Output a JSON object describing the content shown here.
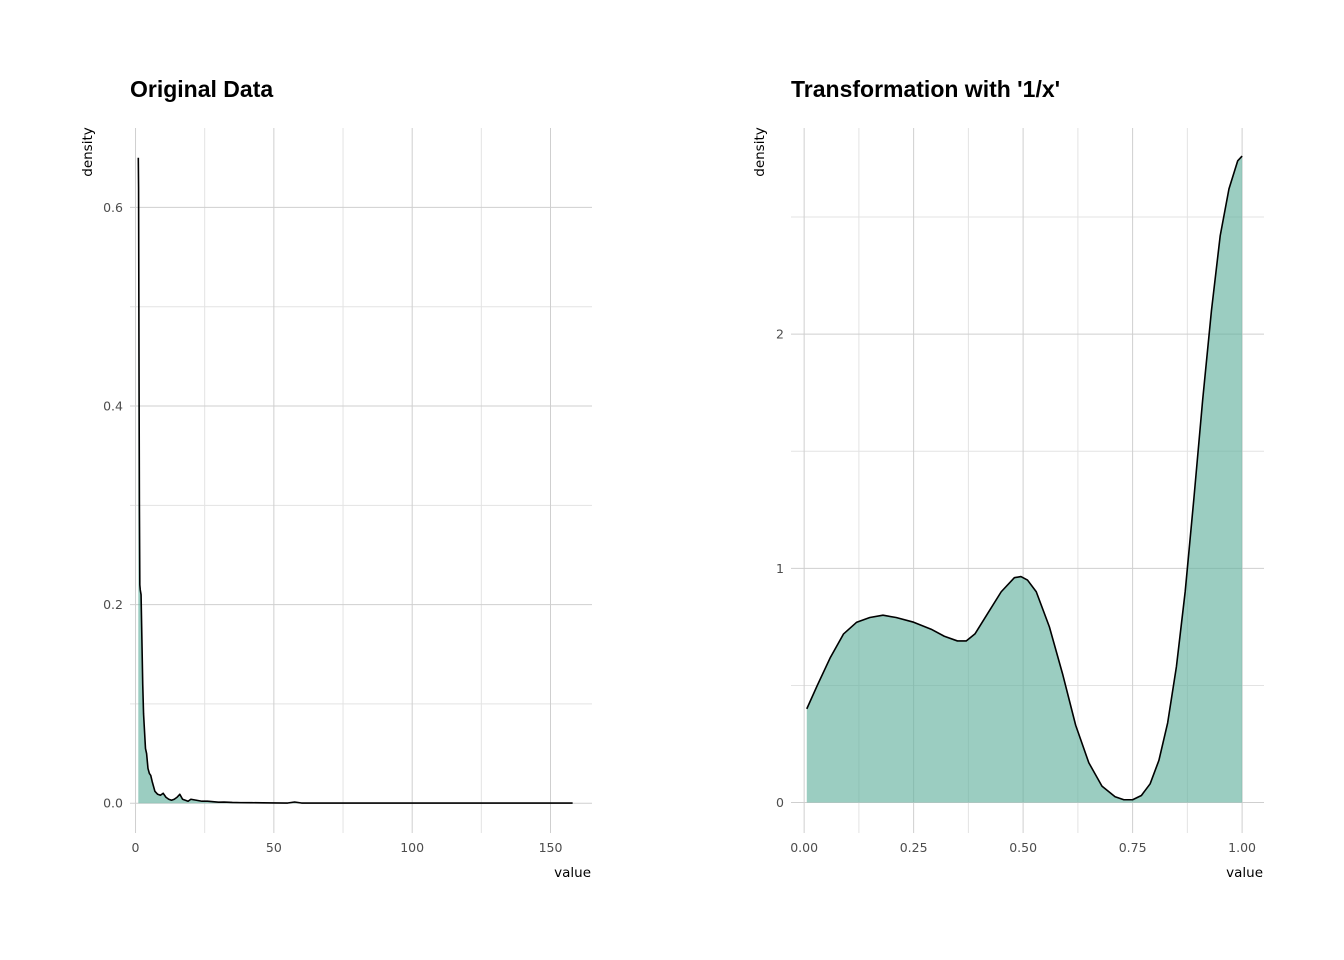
{
  "chart_data": [
    {
      "type": "area",
      "title": "Original Data",
      "xlabel": "value",
      "ylabel": "density",
      "xlim": [
        -2,
        165
      ],
      "ylim": [
        -0.03,
        0.68
      ],
      "x_ticks": [
        0,
        50,
        100,
        150
      ],
      "y_ticks": [
        0.0,
        0.2,
        0.4,
        0.6
      ],
      "x_tick_labels": [
        "0",
        "50",
        "100",
        "150"
      ],
      "y_tick_labels": [
        "0.0",
        "0.2",
        "0.4",
        "0.6"
      ],
      "grid": true,
      "fill_color": "#66b2a0",
      "fill_opacity": 0.65,
      "line_color": "#000000",
      "series": [
        {
          "x": [
            1.0,
            1.1,
            1.25,
            1.4,
            1.55,
            1.7,
            2.0,
            2.3,
            2.6,
            2.9,
            3.2,
            3.6,
            4.0,
            4.5,
            5.0,
            5.5,
            6.0,
            7.0,
            8.0,
            9.0,
            10.0,
            11.0,
            12.0,
            13.0,
            14.0,
            15.0,
            16.0,
            17.0,
            18.0,
            19.0,
            20.0,
            22.0,
            24.0,
            26.0,
            28.0,
            30.0,
            32.0,
            35.0,
            38.0,
            42.0,
            46.0,
            50.0,
            55.0,
            57.5,
            60.0,
            70.0,
            80.0,
            100.0,
            120.0,
            140.0,
            158.0
          ],
          "y": [
            0.65,
            0.62,
            0.45,
            0.3,
            0.22,
            0.215,
            0.21,
            0.165,
            0.12,
            0.09,
            0.075,
            0.055,
            0.05,
            0.035,
            0.03,
            0.028,
            0.022,
            0.012,
            0.009,
            0.008,
            0.01,
            0.006,
            0.004,
            0.003,
            0.004,
            0.006,
            0.009,
            0.004,
            0.003,
            0.002,
            0.004,
            0.003,
            0.002,
            0.002,
            0.0015,
            0.001,
            0.0012,
            0.0008,
            0.0006,
            0.0005,
            0.0004,
            0.0003,
            0.0002,
            0.0012,
            0.0002,
            0.0001,
            0.0001,
            0.0001,
            0.0001,
            0.0001,
            0.0001
          ]
        }
      ]
    },
    {
      "type": "area",
      "title": "Transformation with '1/x'",
      "xlabel": "value",
      "ylabel": "density",
      "xlim": [
        -0.03,
        1.05
      ],
      "ylim": [
        -0.13,
        2.88
      ],
      "x_ticks": [
        0.0,
        0.25,
        0.5,
        0.75,
        1.0
      ],
      "y_ticks": [
        0,
        1,
        2
      ],
      "x_tick_labels": [
        "0.00",
        "0.25",
        "0.50",
        "0.75",
        "1.00"
      ],
      "y_tick_labels": [
        "0",
        "1",
        "2"
      ],
      "grid": true,
      "fill_color": "#66b2a0",
      "fill_opacity": 0.65,
      "line_color": "#000000",
      "series": [
        {
          "x": [
            0.006,
            0.03,
            0.06,
            0.09,
            0.12,
            0.15,
            0.18,
            0.21,
            0.25,
            0.29,
            0.32,
            0.35,
            0.37,
            0.39,
            0.42,
            0.45,
            0.48,
            0.495,
            0.51,
            0.53,
            0.56,
            0.59,
            0.62,
            0.65,
            0.68,
            0.71,
            0.73,
            0.75,
            0.77,
            0.79,
            0.81,
            0.83,
            0.85,
            0.87,
            0.89,
            0.91,
            0.93,
            0.95,
            0.97,
            0.99,
            1.0
          ],
          "y": [
            0.4,
            0.5,
            0.62,
            0.72,
            0.77,
            0.79,
            0.8,
            0.79,
            0.77,
            0.74,
            0.71,
            0.69,
            0.69,
            0.72,
            0.81,
            0.9,
            0.96,
            0.965,
            0.95,
            0.9,
            0.75,
            0.55,
            0.33,
            0.17,
            0.07,
            0.025,
            0.012,
            0.012,
            0.03,
            0.08,
            0.18,
            0.34,
            0.58,
            0.9,
            1.3,
            1.72,
            2.1,
            2.42,
            2.62,
            2.74,
            2.76
          ]
        }
      ]
    }
  ]
}
